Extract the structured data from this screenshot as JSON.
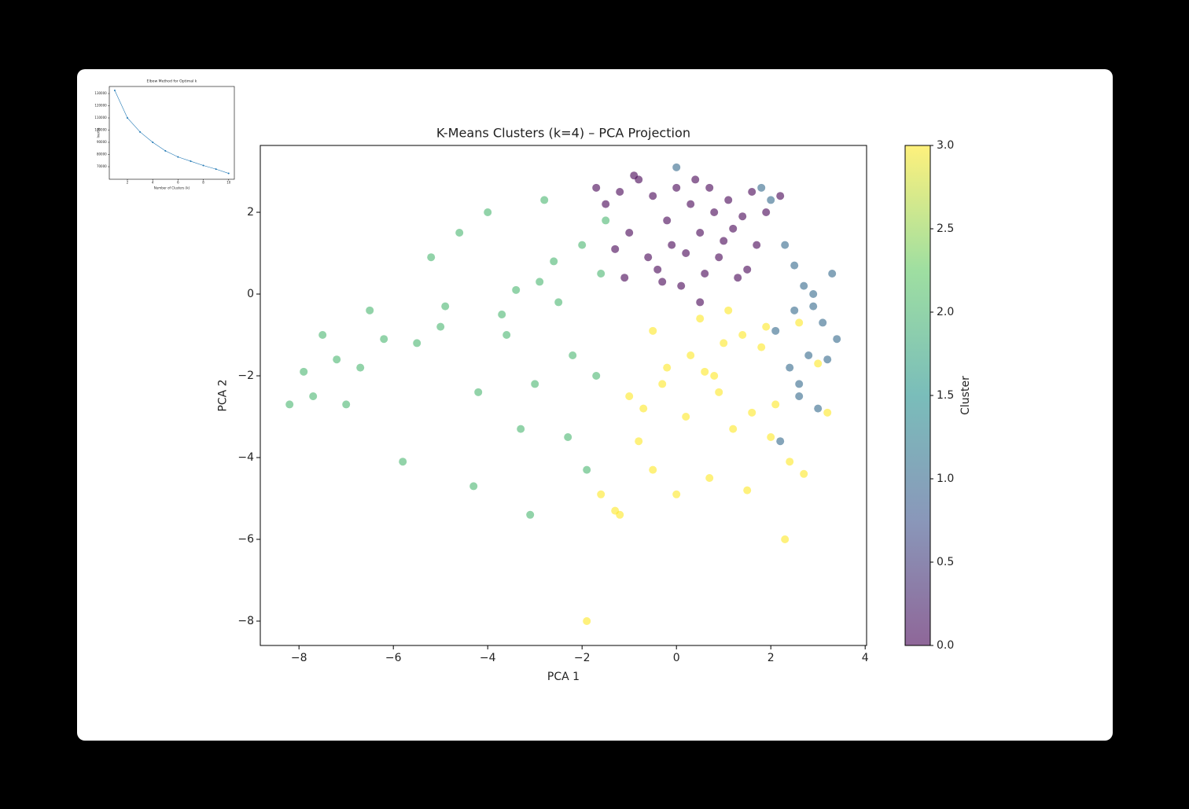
{
  "chart_data": [
    {
      "type": "line",
      "title": "Elbow Method for Optimal k",
      "x_label": "Number of Clusters (k)",
      "y_label": "Inertia",
      "x": [
        1,
        2,
        3,
        4,
        5,
        6,
        7,
        8,
        9,
        10
      ],
      "values": [
        132600,
        110000,
        98500,
        90000,
        83000,
        78000,
        74500,
        71000,
        68000,
        64500
      ],
      "color": "#1f77b4",
      "xlim": [
        0.57,
        10.45
      ],
      "xticks": [
        2,
        4,
        6,
        8,
        10
      ],
      "ylim": [
        59700,
        135800
      ],
      "yticks": [
        70000,
        80000,
        90000,
        100000,
        110000,
        120000,
        130000
      ]
    },
    {
      "type": "scatter",
      "title": "K-Means Clusters (k=4) – PCA Projection",
      "x_label": "PCA 1",
      "y_label": "PCA 2",
      "series": [
        {
          "cluster": 2,
          "x": [
            -8.2,
            -7.9,
            -7.7,
            -7.5,
            -7.2,
            -7.0,
            -6.7,
            -6.5,
            -6.2,
            -5.8,
            -5.5,
            -5.2,
            -4.9,
            -4.6,
            -4.3,
            -4.0,
            -3.7,
            -3.4,
            -3.1,
            -2.8,
            -2.5,
            -2.2,
            -1.9,
            -1.6,
            -3.0,
            -2.6,
            -2.3,
            -3.6,
            -4.2,
            -5.0,
            -2.0,
            -1.7,
            -3.3,
            -2.9,
            -1.5
          ],
          "values": [
            -2.7,
            -1.9,
            -2.5,
            -1.0,
            -1.6,
            -2.7,
            -1.8,
            -0.4,
            -1.1,
            -4.1,
            -1.2,
            0.9,
            -0.3,
            1.5,
            -4.7,
            2.0,
            -0.5,
            0.1,
            -5.4,
            2.3,
            -0.2,
            -1.5,
            -4.3,
            0.5,
            -2.2,
            0.8,
            -3.5,
            -1.0,
            -2.4,
            -0.8,
            1.2,
            -2.0,
            -3.3,
            0.3,
            1.8
          ]
        },
        {
          "cluster": 0,
          "x": [
            -1.5,
            -1.2,
            -0.8,
            -0.5,
            -0.2,
            0,
            0.3,
            0.5,
            0.8,
            1.1,
            1.4,
            1.7,
            -1.0,
            -0.6,
            0.2,
            0.6,
            1.0,
            1.5,
            1.9,
            -0.3,
            0.1,
            0.9,
            1.3,
            -1.3,
            -0.9,
            0.4,
            1.6,
            -0.1,
            0.7,
            1.2,
            -1.7,
            -0.4,
            0.5,
            -1.1,
            2.2
          ],
          "values": [
            2.2,
            2.5,
            2.8,
            2.4,
            1.8,
            2.6,
            2.2,
            1.5,
            2.0,
            2.3,
            1.9,
            1.2,
            1.5,
            0.9,
            1.0,
            0.5,
            1.3,
            0.6,
            2.0,
            0.3,
            0.2,
            0.9,
            0.4,
            1.1,
            2.9,
            2.8,
            2.5,
            1.2,
            2.6,
            1.6,
            2.6,
            0.6,
            -0.2,
            0.4,
            2.4
          ]
        },
        {
          "cluster": 1,
          "x": [
            2.3,
            2.5,
            2.7,
            2.9,
            3.1,
            3.3,
            3.4,
            3.0,
            2.6,
            2.8,
            2.2,
            2.4,
            3.2,
            2.0,
            1.8,
            0.0,
            2.5,
            2.9,
            2.6,
            2.1
          ],
          "values": [
            1.2,
            0.7,
            0.2,
            -0.3,
            -0.7,
            0.5,
            -1.1,
            -2.8,
            -2.5,
            -1.5,
            -3.6,
            -1.8,
            -1.6,
            2.3,
            2.6,
            3.1,
            -0.4,
            0.0,
            -2.2,
            -0.9
          ]
        },
        {
          "cluster": 3,
          "x": [
            -1.9,
            -1.6,
            -1.3,
            -1.2,
            -0.8,
            -0.5,
            -0.3,
            0.0,
            0.3,
            0.6,
            0.9,
            1.2,
            1.5,
            1.8,
            2.1,
            2.4,
            2.7,
            3.0,
            2.3,
            1.9,
            -0.5,
            0.5,
            1.0,
            1.6,
            2.0,
            -1.0,
            0.2,
            0.8,
            1.4,
            2.6,
            -0.2,
            0.7,
            1.1,
            -0.7,
            3.2
          ],
          "values": [
            -8.0,
            -4.9,
            -5.3,
            -5.4,
            -3.6,
            -4.3,
            -2.2,
            -4.9,
            -1.5,
            -1.9,
            -2.4,
            -3.3,
            -4.8,
            -1.3,
            -2.7,
            -4.1,
            -4.4,
            -1.7,
            -6.0,
            -0.8,
            -0.9,
            -0.6,
            -1.2,
            -2.9,
            -3.5,
            -2.5,
            -3.0,
            -2.0,
            -1.0,
            -0.7,
            -1.8,
            -4.5,
            -0.4,
            -2.8,
            -2.9
          ]
        }
      ],
      "xlim": [
        -8.82,
        4.03
      ],
      "xticks": [
        {
          "value": -8,
          "label": "−8"
        },
        {
          "value": -6,
          "label": "−6"
        },
        {
          "value": -4,
          "label": "−4"
        },
        {
          "value": -2,
          "label": "−2"
        },
        0,
        2,
        4
      ],
      "ylim": [
        -8.596,
        3.635
      ],
      "yticks": [
        {
          "value": -8,
          "label": "−8"
        },
        {
          "value": -6,
          "label": "−6"
        },
        {
          "value": -4,
          "label": "−4"
        },
        {
          "value": -2,
          "label": "−2"
        },
        0,
        2
      ],
      "colorbar": {
        "label": "Cluster",
        "lim": [
          0,
          3
        ],
        "ticks": [
          {
            "value": 0,
            "label": "0.0"
          },
          0.5,
          {
            "value": 1,
            "label": "1.0"
          },
          1.5,
          {
            "value": 2,
            "label": "2.0"
          },
          2.5,
          {
            "value": 3,
            "label": "3.0"
          }
        ]
      }
    }
  ]
}
